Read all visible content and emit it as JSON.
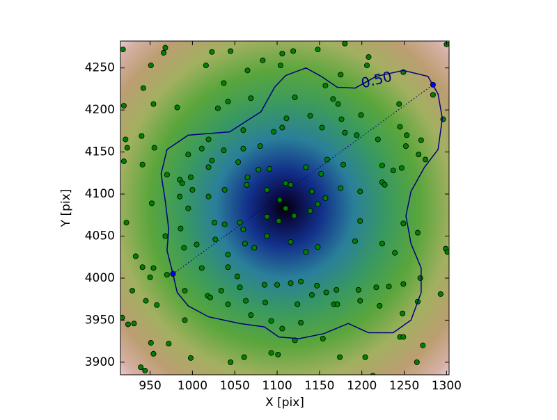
{
  "chart_data": {
    "type": "scatter",
    "xlabel": "X [pix]",
    "ylabel": "Y [pix]",
    "xlim": [
      915,
      1303
    ],
    "ylim": [
      3885,
      4282
    ],
    "xticks": [
      950,
      1000,
      1050,
      1100,
      1150,
      1200,
      1250,
      1300
    ],
    "yticks": [
      3900,
      3950,
      4000,
      4050,
      4100,
      4150,
      4200,
      4250
    ],
    "series": [
      {
        "kind": "scatter",
        "color": "#008000",
        "x": [
          918,
          968,
          966,
          1023,
          1045,
          1106,
          1119,
          1148,
          1180,
          1208,
          1300,
          951,
          1016,
          1065,
          1083,
          1104,
          1157,
          1175,
          1206,
          1249,
          919,
          954,
          942,
          982,
          1037,
          1030,
          1042,
          1069,
          1121,
          1166,
          1172,
          1176,
          1199,
          1244,
          1284,
          1296,
          1253,
          1270,
          921,
          923,
          940,
          955,
          995,
          1011,
          1019,
          1037,
          1060,
          1060,
          1080,
          1096,
          1106,
          1111,
          1139,
          1153,
          1180,
          1194,
          1219,
          1245,
          1252,
          1267,
          919,
          941,
          970,
          985,
          998,
          1019,
          1023,
          1054,
          1065,
          1078,
          1091,
          1110,
          1134,
          1152,
          1159,
          1178,
          1224,
          1237,
          1247,
          1275,
          952,
          985,
          988,
          1000,
          1019,
          1038,
          1064,
          1088,
          1103,
          1116,
          1141,
          1157,
          1175,
          1198,
          1224,
          1227,
          922,
          986,
          995,
          1026,
          1038,
          1056,
          1060,
          1088,
          1102,
          1110,
          1120,
          1139,
          1148,
          1198,
          1249,
          1266,
          1299,
          1301,
          968,
          990,
          1005,
          1027,
          1042,
          1062,
          1088,
          1116,
          1134,
          1148,
          1192,
          1224,
          1239,
          933,
          941,
          954,
          950,
          1011,
          1042,
          1053,
          1073,
          929,
          945,
          958,
          970,
          991,
          1018,
          1034,
          1056,
          1085,
          1100,
          1116,
          1128,
          1147,
          1158,
          1170,
          1196,
          1217,
          1232,
          1249,
          1269,
          917,
          924,
          931,
          991,
          1021,
          1042,
          1063,
          1069,
          1086,
          1093,
          1106,
          1124,
          1128,
          1141,
          1167,
          1171,
          1198,
          1221,
          1248,
          1266,
          1293,
          951,
          954,
          972,
          998,
          1045,
          1061,
          1093,
          1101,
          1121,
          1154,
          1174,
          1204,
          1213,
          1245,
          1249,
          1265,
          1272,
          939,
          944
        ],
        "y": [
          4272,
          4274,
          4268,
          4269,
          4270,
          4267,
          4270,
          4272,
          4279,
          4263,
          4278,
          4253,
          4253,
          4247,
          4259,
          4253,
          4229,
          4242,
          4253,
          4245,
          4205,
          4207,
          4226,
          4203,
          4232,
          4202,
          4210,
          4214,
          4215,
          4213,
          4207,
          4189,
          4194,
          4207,
          4218,
          4189,
          4170,
          4164,
          4165,
          4155,
          4169,
          4155,
          4147,
          4154,
          4165,
          4152,
          4176,
          4154,
          4157,
          4174,
          4179,
          4190,
          4193,
          4179,
          4173,
          4170,
          4165,
          4180,
          4157,
          4147,
          4139,
          4135,
          4123,
          4117,
          4120,
          4132,
          4140,
          4138,
          4120,
          4129,
          4130,
          4113,
          4132,
          4124,
          4141,
          4135,
          4134,
          4128,
          4131,
          4141,
          4089,
          4097,
          4113,
          4105,
          4097,
          4105,
          4111,
          4105,
          4093,
          4111,
          4103,
          4095,
          4107,
          4103,
          4114,
          4111,
          4066,
          4059,
          4083,
          4066,
          4064,
          4066,
          4058,
          4073,
          4068,
          4083,
          4074,
          4080,
          4088,
          4068,
          4065,
          4054,
          4035,
          4031,
          4050,
          4036,
          4040,
          4046,
          4028,
          4041,
          4050,
          4043,
          4031,
          4037,
          4044,
          4041,
          4030,
          4026,
          4013,
          4012,
          4001,
          4012,
          4013,
          4002,
          4036,
          3985,
          3973,
          3968,
          4004,
          3985,
          3979,
          3985,
          3989,
          3992,
          3992,
          3994,
          3996,
          3991,
          3983,
          3986,
          3986,
          3989,
          3990,
          3993,
          4000,
          3953,
          3945,
          3946,
          3950,
          3977,
          3969,
          3973,
          3956,
          3971,
          3949,
          3940,
          3969,
          3947,
          3980,
          3969,
          3969,
          3973,
          3967,
          3958,
          3972,
          3981,
          3923,
          3910,
          3922,
          3905,
          3900,
          3906,
          3911,
          3909,
          3926,
          3928,
          3906,
          3906,
          3884,
          3930,
          3930,
          3900,
          3920,
          3894,
          3890
        ]
      },
      {
        "kind": "line",
        "color": "#00007f",
        "label": "0.50",
        "x": [
          977,
          970,
          972,
          968,
          963,
          970,
          995,
          1044,
          1081,
          1097,
          1110,
          1134,
          1152,
          1171,
          1192,
          1217,
          1249,
          1278,
          1290,
          1295,
          1290,
          1274,
          1258,
          1252,
          1258,
          1270,
          1270,
          1258,
          1237,
          1208,
          1184,
          1155,
          1126,
          1102,
          1085,
          1056,
          1019,
          995,
          982,
          977
        ],
        "y": [
          4005,
          4033,
          4058,
          4091,
          4124,
          4153,
          4170,
          4174,
          4198,
          4227,
          4241,
          4250,
          4240,
          4227,
          4226,
          4240,
          4247,
          4240,
          4219,
          4190,
          4153,
          4132,
          4103,
          4074,
          4041,
          4012,
          3983,
          3950,
          3935,
          3935,
          3946,
          3934,
          3928,
          3930,
          3942,
          3946,
          3954,
          3967,
          3983,
          4005
        ]
      },
      {
        "kind": "scatter",
        "color": "#0000ff",
        "linestyle": "dotted",
        "x": [
          977,
          1284
        ],
        "y": [
          4005,
          4230
        ]
      }
    ]
  }
}
